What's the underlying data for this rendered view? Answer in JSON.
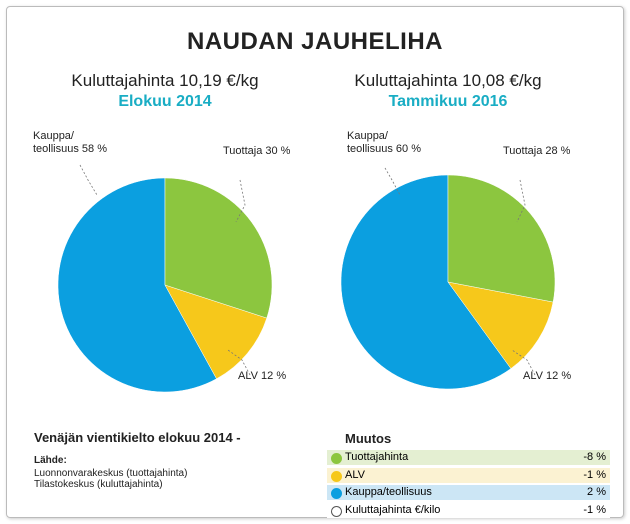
{
  "title": "NAUDAN JAUHELIHA",
  "chart_data": [
    {
      "type": "pie",
      "title": "Kuluttajahinta 10,19 €/kg",
      "subtitle": "Elokuu 2014",
      "labels": [
        "Tuottaja 30 %",
        "ALV 12 %",
        "Kauppa/\nteollisuus 58 %"
      ],
      "values": [
        30,
        12,
        58
      ],
      "colors": [
        "#8cc63f",
        "#f6c81b",
        "#0b9fe0"
      ]
    },
    {
      "type": "pie",
      "title": "Kuluttajahinta 10,08 €/kg",
      "subtitle": "Tammikuu 2016",
      "labels": [
        "Tuottaja 28 %",
        "ALV 12 %",
        "Kauppa/\nteollisuus 60 %"
      ],
      "values": [
        28,
        12,
        60
      ],
      "colors": [
        "#8cc63f",
        "#f6c81b",
        "#0b9fe0"
      ]
    }
  ],
  "footer": {
    "heading": "Venäjän vientikielto elokuu 2014 -",
    "source_label": "Lähde:",
    "sources": [
      "Luonnonvarakeskus (tuottajahinta)",
      "Tilastokeskus (kuluttajahinta)"
    ]
  },
  "changes": {
    "heading": "Muutos",
    "rows": [
      [
        "Tuottajahinta",
        "-8 %"
      ],
      [
        "ALV",
        "-1 %"
      ],
      [
        "Kauppa/teollisuus",
        "2 %"
      ],
      [
        "Kuluttajahinta €/kilo",
        "-1 %"
      ]
    ],
    "dot_colors": [
      "#8cc63f",
      "#f6c81b",
      "#0b9fe0",
      "#ffffff"
    ],
    "row_colors": [
      "#e4efd2",
      "#fbf2d2",
      "#cce6f5",
      "#ffffff"
    ]
  }
}
